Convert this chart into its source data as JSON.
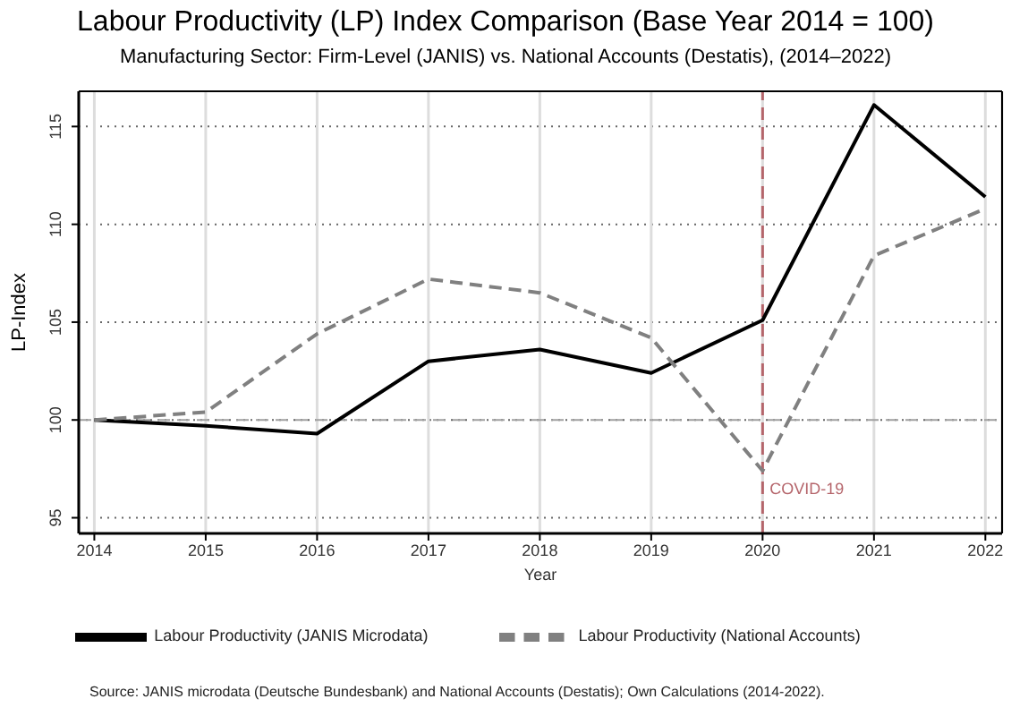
{
  "chart_data": {
    "type": "line",
    "title": "Labour Productivity (LP) Index Comparison (Base Year 2014 = 100)",
    "subtitle": "Manufacturing Sector: Firm-Level (JANIS) vs. National Accounts (Destatis), (2014–2022)",
    "xlabel": "Year",
    "ylabel": "LP-Index",
    "x": [
      2014,
      2015,
      2016,
      2017,
      2018,
      2019,
      2020,
      2021,
      2022
    ],
    "series": [
      {
        "name": "Labour Productivity (JANIS Microdata)",
        "color": "#000000",
        "line_style": "solid",
        "values": [
          100,
          99.7,
          99.3,
          103.0,
          103.6,
          102.4,
          105.1,
          116.1,
          111.4
        ]
      },
      {
        "name": "Labour Productivity (National Accounts)",
        "color": "#808080",
        "line_style": "dashed",
        "values": [
          100,
          100.4,
          104.4,
          107.2,
          106.5,
          104.2,
          97.4,
          108.4,
          110.8
        ]
      }
    ],
    "xlim": [
      2013.86,
      2022.15
    ],
    "ylim": [
      94.2,
      116.8
    ],
    "xticks": [
      2014,
      2015,
      2016,
      2017,
      2018,
      2019,
      2020,
      2021,
      2022
    ],
    "yticks": [
      95,
      100,
      105,
      110,
      115
    ],
    "grid": true,
    "legend": "bottom",
    "ref_lines": [
      {
        "axis": "y",
        "value": 100,
        "color": "#a0a0a0",
        "line_style": "dashed"
      },
      {
        "axis": "x",
        "value": 2020,
        "label": "COVID-19",
        "color": "#b5656b",
        "line_style": "dashed"
      }
    ],
    "annotations": [
      "Source: JANIS microdata (Deutsche Bundesbank) and National Accounts (Destatis); Own Calculations (2014-2022)."
    ]
  }
}
